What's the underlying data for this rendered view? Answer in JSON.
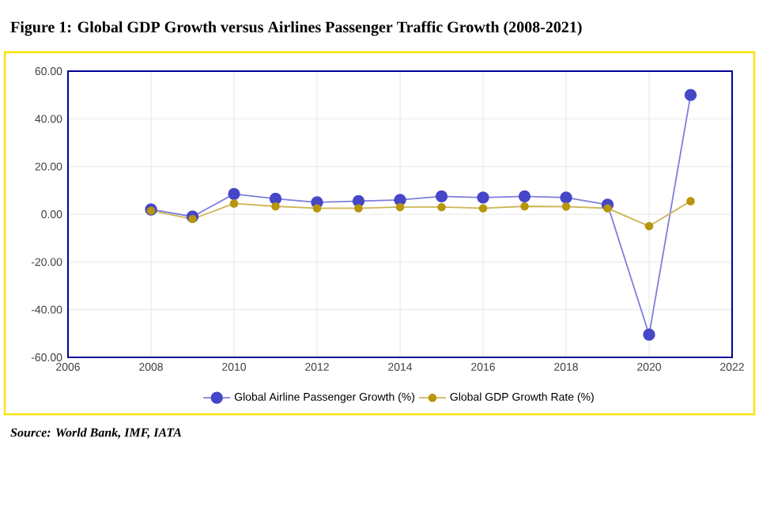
{
  "chart_data": {
    "type": "line",
    "title": "Figure 1: Global GDP Growth versus Airlines Passenger Traffic Growth (2008-2021)",
    "annotations": [
      "Source: World Bank, IMF, IATA"
    ],
    "x": [
      2008,
      2009,
      2010,
      2011,
      2012,
      2013,
      2014,
      2015,
      2016,
      2017,
      2018,
      2019,
      2020,
      2021
    ],
    "series": [
      {
        "name": "Global Airline Passenger Growth (%)",
        "color": "#4646c8",
        "values": [
          2,
          -1,
          8.5,
          6.5,
          5,
          5.5,
          6,
          7.5,
          7,
          7.5,
          7,
          4,
          -50.5,
          50
        ]
      },
      {
        "name": "Global GDP Growth Rate (%)",
        "color": "#b8960c",
        "values": [
          1.5,
          -2,
          4.5,
          3.3,
          2.5,
          2.5,
          3,
          3,
          2.5,
          3.3,
          3.2,
          2.5,
          -5,
          5.5
        ]
      }
    ],
    "xlim": [
      2006,
      2022
    ],
    "xticks": [
      2006,
      2008,
      2010,
      2012,
      2014,
      2016,
      2018,
      2020,
      2022
    ],
    "ylim": [
      -60,
      60
    ],
    "yticks": [
      {
        "value": -60,
        "label": "-60.00"
      },
      {
        "value": -40,
        "label": "-40.00"
      },
      {
        "value": -20,
        "label": "-20.00"
      },
      {
        "value": 0,
        "label": "0.00"
      },
      {
        "value": 20,
        "label": "20.00"
      },
      {
        "value": 40,
        "label": "40.00"
      },
      {
        "value": 60,
        "label": "60.00"
      }
    ],
    "grid": true,
    "legend": "bottom",
    "marker": "circle",
    "line_style": "solid"
  }
}
